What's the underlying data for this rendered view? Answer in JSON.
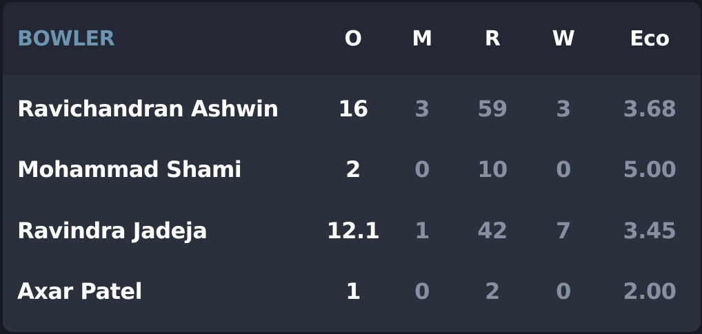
{
  "table": {
    "headers": {
      "bowler": "BOWLER",
      "overs": "O",
      "maidens": "M",
      "runs": "R",
      "wickets": "W",
      "economy": "Eco"
    },
    "rows": [
      {
        "name": "Ravichandran Ashwin",
        "overs": "16",
        "maidens": "3",
        "runs": "59",
        "wickets": "3",
        "economy": "3.68"
      },
      {
        "name": "Mohammad Shami",
        "overs": "2",
        "maidens": "0",
        "runs": "10",
        "wickets": "0",
        "economy": "5.00"
      },
      {
        "name": "Ravindra Jadeja",
        "overs": "12.1",
        "maidens": "1",
        "runs": "42",
        "wickets": "7",
        "economy": "3.45"
      },
      {
        "name": "Axar Patel",
        "overs": "1",
        "maidens": "0",
        "runs": "2",
        "wickets": "0",
        "economy": "2.00"
      }
    ]
  },
  "colors": {
    "background": "#2b303d",
    "header_background": "#232834",
    "header_accent": "#6d94b1",
    "muted_text": "#8790a3",
    "primary_text": "#ffffff"
  }
}
